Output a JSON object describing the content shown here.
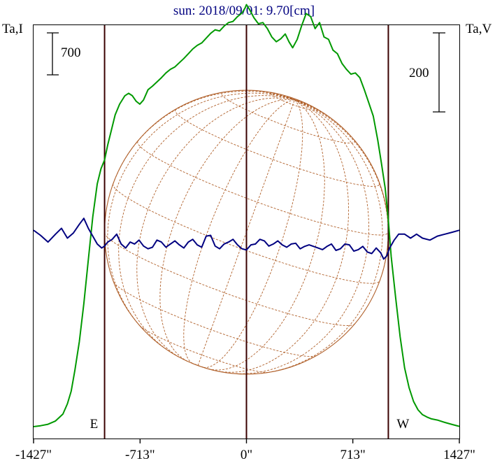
{
  "chart_data": {
    "type": "line",
    "title": "sun: 2018/09/01: 9.70[cm]",
    "ylabel_left": "Ta,I",
    "ylabel_right": "Ta,V",
    "scale_bar_left": "700",
    "scale_bar_right": "200",
    "xlim": [
      -1427,
      1427
    ],
    "x_ticks": [
      {
        "value": -1427,
        "label": "-1427\""
      },
      {
        "value": -713,
        "label": "-713\""
      },
      {
        "value": 0,
        "label": "0\""
      },
      {
        "value": 713,
        "label": "713\""
      },
      {
        "value": 1427,
        "label": "1427\""
      }
    ],
    "vertical_markers": [
      {
        "value": -951,
        "label": "E"
      },
      {
        "value": 0,
        "label": ""
      },
      {
        "value": 951,
        "label": "W"
      }
    ],
    "disk": {
      "radius_arcsec": 951
    },
    "series": [
      {
        "color": "#009900",
        "x": [
          -1427,
          -1380,
          -1330,
          -1280,
          -1230,
          -1200,
          -1175,
          -1150,
          -1120,
          -1090,
          -1060,
          -1030,
          -1000,
          -975,
          -951,
          -930,
          -905,
          -880,
          -850,
          -815,
          -790,
          -765,
          -740,
          -715,
          -690,
          -660,
          -630,
          -600,
          -570,
          -540,
          -510,
          -480,
          -450,
          -420,
          -390,
          -360,
          -330,
          -300,
          -270,
          -240,
          -210,
          -180,
          -150,
          -120,
          -90,
          -60,
          -30,
          -10,
          0,
          20,
          50,
          80,
          110,
          140,
          170,
          200,
          230,
          260,
          285,
          310,
          340,
          370,
          400,
          430,
          460,
          490,
          520,
          550,
          580,
          610,
          640,
          670,
          700,
          730,
          760,
          790,
          820,
          850,
          880,
          905,
          930,
          951,
          970,
          1000,
          1030,
          1060,
          1090,
          1120,
          1150,
          1180,
          1210,
          1240,
          1280,
          1330,
          1380,
          1427
        ],
        "y": [
          0,
          15,
          40,
          95,
          210,
          380,
          590,
          940,
          1420,
          2050,
          2780,
          3500,
          4050,
          4300,
          4450,
          4700,
          4950,
          5200,
          5380,
          5520,
          5560,
          5520,
          5430,
          5380,
          5450,
          5620,
          5680,
          5750,
          5820,
          5900,
          5960,
          6000,
          6070,
          6140,
          6220,
          6300,
          6360,
          6400,
          6480,
          6560,
          6620,
          6600,
          6680,
          6740,
          6760,
          6840,
          6900,
          6980,
          7040,
          6960,
          6820,
          6720,
          6740,
          6640,
          6500,
          6420,
          6470,
          6550,
          6420,
          6320,
          6460,
          6690,
          6890,
          6840,
          6640,
          6740,
          6500,
          6460,
          6280,
          6220,
          6060,
          5960,
          5880,
          5900,
          5820,
          5620,
          5400,
          5180,
          4780,
          4390,
          3980,
          3450,
          2840,
          2150,
          1500,
          980,
          650,
          420,
          280,
          200,
          160,
          130,
          110,
          70,
          35,
          5
        ]
      },
      {
        "color": "#000080",
        "x": [
          -1427,
          -1380,
          -1330,
          -1280,
          -1240,
          -1200,
          -1160,
          -1120,
          -1090,
          -1060,
          -1030,
          -1000,
          -970,
          -951,
          -930,
          -900,
          -870,
          -840,
          -810,
          -780,
          -750,
          -720,
          -690,
          -660,
          -630,
          -600,
          -570,
          -540,
          -510,
          -480,
          -450,
          -420,
          -390,
          -360,
          -330,
          -300,
          -270,
          -240,
          -210,
          -180,
          -150,
          -120,
          -90,
          -60,
          -30,
          0,
          30,
          60,
          90,
          120,
          150,
          180,
          210,
          240,
          270,
          300,
          330,
          360,
          390,
          420,
          450,
          480,
          510,
          540,
          570,
          600,
          630,
          660,
          690,
          720,
          750,
          780,
          810,
          840,
          870,
          900,
          920,
          940,
          960,
          990,
          1020,
          1060,
          1100,
          1140,
          1180,
          1230,
          1280,
          1330,
          1380,
          1427
        ],
        "y": [
          5,
          -8,
          -25,
          -5,
          10,
          -15,
          -2,
          20,
          35,
          10,
          -10,
          -30,
          -40,
          -35,
          -25,
          -18,
          -5,
          -30,
          -40,
          -25,
          -30,
          -20,
          -35,
          -42,
          -38,
          -20,
          -25,
          -38,
          -30,
          -22,
          -32,
          -40,
          -25,
          -18,
          -32,
          -38,
          -10,
          -8,
          -35,
          -42,
          -30,
          -25,
          -18,
          -32,
          -42,
          -45,
          -32,
          -30,
          -18,
          -22,
          -35,
          -30,
          -22,
          -32,
          -38,
          -30,
          -28,
          -42,
          -36,
          -32,
          -36,
          -40,
          -44,
          -36,
          -30,
          -46,
          -42,
          -30,
          -32,
          -48,
          -44,
          -36,
          -50,
          -54,
          -40,
          -52,
          -68,
          -60,
          -40,
          -20,
          -5,
          -5,
          -15,
          -5,
          -15,
          -20,
          -10,
          -5,
          0,
          5
        ]
      }
    ]
  }
}
